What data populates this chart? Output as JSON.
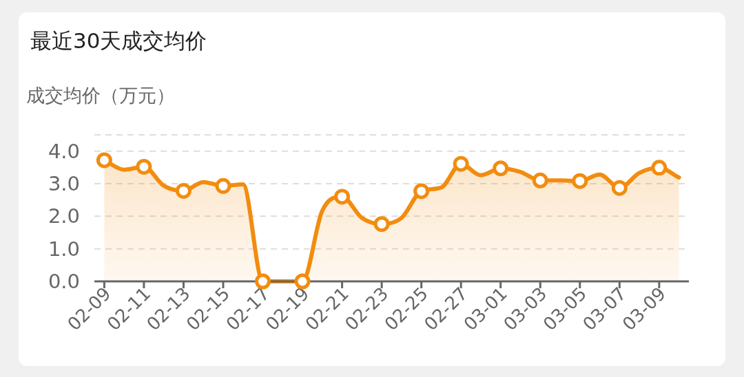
{
  "chart_data": {
    "type": "area",
    "title": "最近30天成交均价",
    "ylabel": "成交均价（万元）",
    "categories": [
      "02-09",
      null,
      "02-11",
      null,
      "02-13",
      null,
      "02-15",
      null,
      "02-17",
      null,
      "02-19",
      null,
      "02-21",
      null,
      "02-23",
      null,
      "02-25",
      null,
      "02-27",
      null,
      "03-01",
      null,
      "03-03",
      null,
      "03-05",
      null,
      "03-07",
      null,
      "03-09",
      null
    ],
    "series": [
      {
        "color": "#f28c0f",
        "values": [
          3.72,
          3.43,
          3.52,
          2.94,
          2.78,
          3.05,
          2.93,
          2.98,
          0,
          0,
          0,
          2.17,
          2.6,
          1.95,
          1.76,
          1.95,
          2.77,
          2.88,
          3.61,
          3.26,
          3.47,
          3.36,
          3.1,
          3.1,
          3.08,
          3.28,
          2.87,
          3.33,
          3.49,
          3.19
        ]
      }
    ],
    "ylim": [
      0,
      4.5
    ],
    "yticks": [
      {
        "value": 0,
        "label": "0.0"
      },
      {
        "value": 1,
        "label": "1.0"
      },
      {
        "value": 2,
        "label": "2.0"
      },
      {
        "value": 3,
        "label": "3.0"
      },
      {
        "value": 4,
        "label": "4.0"
      }
    ],
    "grid": "y",
    "marker": "circle",
    "line_style": "solid"
  }
}
